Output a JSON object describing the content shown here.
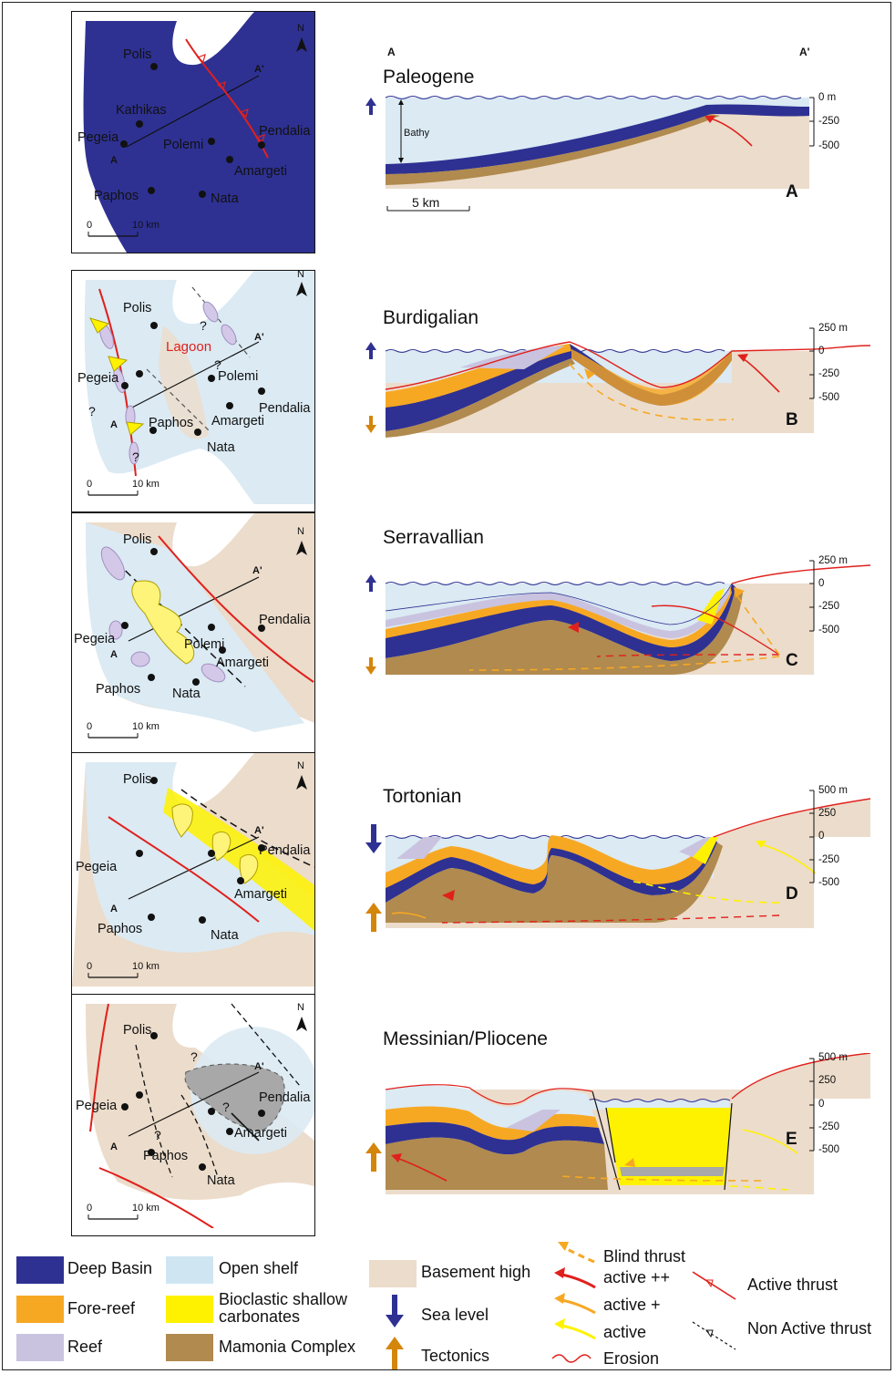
{
  "header": {
    "a_label": "A",
    "a_prime_label": "A'"
  },
  "stages": [
    {
      "title": "Paleogene",
      "letter": "A",
      "depths": [
        "0 m",
        "-250",
        "-500"
      ],
      "bathy": "Bathy",
      "scale": "5 km"
    },
    {
      "title": "Burdigalian",
      "letter": "B",
      "depths": [
        "250 m",
        "0",
        "-250",
        "-500"
      ]
    },
    {
      "title": "Serravallian",
      "letter": "C",
      "depths": [
        "250 m",
        "0",
        "-250",
        "-500"
      ]
    },
    {
      "title": "Tortonian",
      "letter": "D",
      "depths": [
        "500 m",
        "250",
        "0",
        "-250",
        "-500"
      ]
    },
    {
      "title": "Messinian/Pliocene",
      "letter": "E",
      "depths": [
        "500 m",
        "250",
        "0",
        "-250",
        "-500"
      ]
    }
  ],
  "maps": {
    "north": "N",
    "scale_zero": "0",
    "scale_ten": "10 km",
    "towns": {
      "polis": "Polis",
      "kathikas": "Kathikas",
      "pegeia": "Pegeia",
      "polemi": "Polemi",
      "pendalia": "Pendalia",
      "amargeti": "Amargeti",
      "paphos": "Paphos",
      "nata": "Nata"
    },
    "section_a": "A",
    "section_a_prime": "A'",
    "lagoon": "Lagoon",
    "question": "?"
  },
  "legend": {
    "deep_basin": "Deep Basin",
    "fore_reef": "Fore-reef",
    "reef": "Reef",
    "open_shelf": "Open shelf",
    "bioclastic": "Bioclastic shallow carbonates",
    "mamonia": "Mamonia Complex",
    "basement": "Basement high",
    "sea_level": "Sea level",
    "tectonics": "Tectonics",
    "blind_thrust": "Blind thrust",
    "active_pp": "active ++",
    "active_p": "active +",
    "active": "active",
    "erosion": "Erosion",
    "active_thrust": "Active thrust",
    "non_active_thrust": "Non Active thrust"
  },
  "colors": {
    "deep_basin": "#2e3192",
    "fore_reef": "#f7a823",
    "reef": "#c9c3e0",
    "open_shelf": "#cfe6f2",
    "bioclastic": "#fff200",
    "mamonia": "#b08a4e",
    "basement": "#ecdccb",
    "thrust_red": "#e0201c",
    "sea_level_arrow": "#2e3192",
    "tectonics_arrow": "#d4860b"
  }
}
